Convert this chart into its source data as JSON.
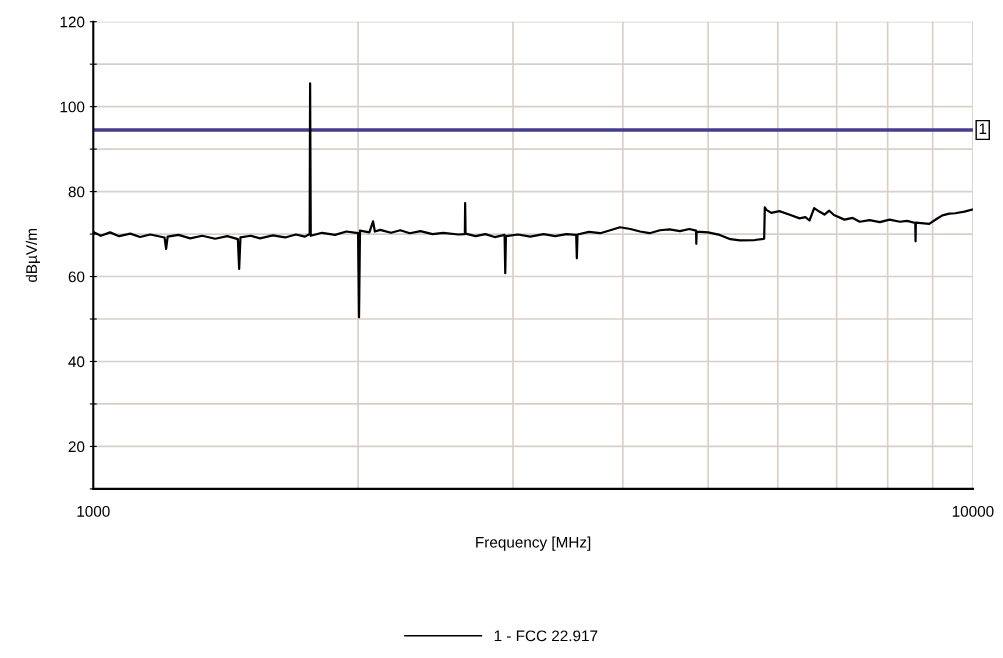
{
  "chart_data": {
    "type": "line",
    "xlabel": "Frequency [MHz]",
    "ylabel": "dBµV/m",
    "log": "x",
    "xlim": [
      1000,
      10000
    ],
    "ylim": [
      10,
      120
    ],
    "xticks": [
      1000,
      {
        "value": 2000,
        "label": null
      },
      {
        "value": 3000,
        "label": null
      },
      {
        "value": 4000,
        "label": null
      },
      {
        "value": 5000,
        "label": null
      },
      {
        "value": 6000,
        "label": null
      },
      {
        "value": 7000,
        "label": null
      },
      {
        "value": 8000,
        "label": null
      },
      {
        "value": 9000,
        "label": null
      },
      10000
    ],
    "yticks": [
      {
        "value": 10,
        "label": null
      },
      20,
      {
        "value": 30,
        "label": null
      },
      40,
      {
        "value": 50,
        "label": null
      },
      60,
      {
        "value": 70,
        "label": null
      },
      80,
      {
        "value": 90,
        "label": null
      },
      100,
      {
        "value": 110,
        "label": null
      },
      120
    ],
    "grid": true,
    "legend": "bottom",
    "marker": "none",
    "line_style": "solid",
    "ref_lines": [
      {
        "axis": "y",
        "value": 94.5,
        "color": "#463c8c",
        "line_style": "solid"
      }
    ],
    "annotations": [
      {
        "text": "1",
        "x": 10000,
        "y": 94.5
      }
    ],
    "series": [
      {
        "name": "1 - FCC 22.917",
        "color": "#000000",
        "x": [
          1000,
          1020,
          1045,
          1070,
          1102,
          1130,
          1161,
          1205,
          1210,
          1215,
          1250,
          1289,
          1330,
          1376,
          1420,
          1460,
          1465,
          1470,
          1510,
          1547,
          1600,
          1652,
          1700,
          1740,
          1762,
          1764,
          1767,
          1820,
          1883,
          1940,
          2000,
          2005,
          2010,
          2060,
          2080,
          2090,
          2119,
          2180,
          2234,
          2290,
          2355,
          2430,
          2500,
          2600,
          2645,
          2647,
          2650,
          2720,
          2791,
          2860,
          2935,
          2940,
          2945,
          3040,
          3139,
          3250,
          3351,
          3450,
          3540,
          3546,
          3552,
          3660,
          3770,
          3870,
          3970,
          4080,
          4183,
          4290,
          4408,
          4520,
          4644,
          4760,
          4845,
          4848,
          4852,
          5000,
          5154,
          5300,
          5435,
          5648,
          5790,
          5800,
          5824,
          5900,
          6024,
          6180,
          6353,
          6450,
          6519,
          6600,
          6689,
          6780,
          6865,
          6950,
          7145,
          7300,
          7436,
          7630,
          7838,
          8040,
          8260,
          8420,
          8600,
          8606,
          8612,
          8919,
          9100,
          9232,
          9400,
          9548,
          9780,
          10000
        ],
        "values": [
          70.5,
          69.6,
          70.4,
          69.5,
          70.1,
          69.3,
          69.9,
          69.2,
          66.5,
          69.4,
          69.8,
          69.0,
          69.6,
          68.9,
          69.5,
          68.8,
          61.8,
          69.2,
          69.6,
          69.0,
          69.7,
          69.2,
          69.9,
          69.4,
          70.0,
          105.5,
          69.6,
          70.3,
          69.8,
          70.6,
          70.2,
          50.4,
          70.8,
          70.4,
          73.0,
          70.6,
          71.0,
          70.3,
          70.9,
          70.2,
          70.7,
          70.0,
          70.3,
          69.9,
          70.0,
          77.3,
          70.1,
          69.5,
          70.0,
          69.3,
          69.8,
          60.8,
          69.5,
          69.9,
          69.4,
          70.0,
          69.5,
          70.0,
          69.8,
          64.3,
          69.9,
          70.5,
          70.2,
          70.9,
          71.6,
          71.2,
          70.6,
          70.2,
          70.9,
          71.1,
          70.7,
          71.2,
          70.8,
          67.7,
          70.6,
          70.4,
          69.8,
          68.8,
          68.5,
          68.6,
          68.9,
          76.3,
          75.7,
          75.0,
          75.4,
          74.6,
          73.7,
          74.0,
          73.2,
          76.1,
          75.3,
          74.6,
          75.5,
          74.5,
          73.4,
          73.8,
          72.9,
          73.3,
          72.8,
          73.4,
          72.9,
          73.1,
          72.6,
          68.3,
          72.7,
          72.4,
          73.6,
          74.4,
          74.8,
          74.9,
          75.3,
          75.8
        ]
      }
    ]
  }
}
